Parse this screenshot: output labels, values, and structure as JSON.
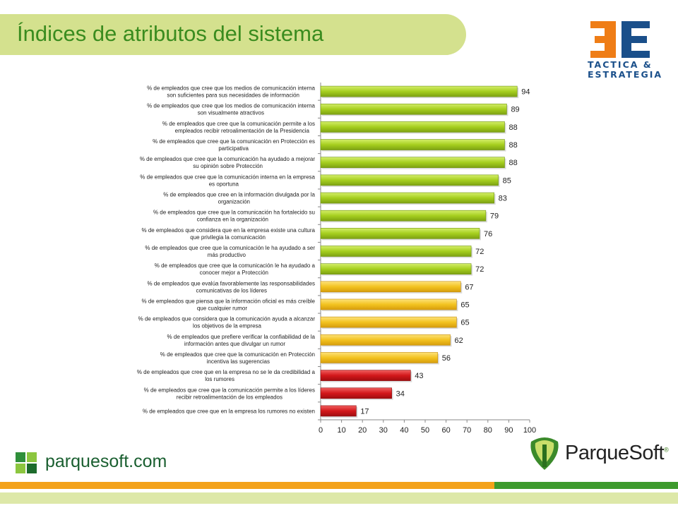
{
  "header": {
    "title": "Índices de atributos del sistema"
  },
  "logos": {
    "tactica_line1": "TACTICA &",
    "tactica_line2": "ESTRATEGIA",
    "parquesoft_url": "parquesoft.com",
    "parquesoft_brand": "ParqueSoft",
    "registered_mark": "®"
  },
  "colors": {
    "title_band": "#d4e18e",
    "title_text": "#3a8c1f",
    "bar_green": "#a6cf1f",
    "bar_yellow": "#f3c320",
    "bar_red": "#d3181b",
    "footer_orange": "#f3a21a",
    "footer_green": "#3d9a2d",
    "logo_orange": "#ef7d16",
    "logo_blue": "#1a4f8a"
  },
  "chart_data": {
    "type": "bar",
    "orientation": "horizontal",
    "title": "",
    "xlabel": "",
    "ylabel": "",
    "xlim": [
      0,
      100
    ],
    "xticks": [
      0,
      10,
      20,
      30,
      40,
      50,
      60,
      70,
      80,
      90,
      100
    ],
    "grid": false,
    "legend": "none",
    "data_labels": true,
    "categories": [
      [
        "% de empleados que cree que los medios de comunicación interna",
        "son suficientes para sus necesidades de información"
      ],
      [
        "% de empleados que cree que los medios de comunicación interna",
        "son visualmente atractivos"
      ],
      [
        "% de empleados que cree que la comunicación permite a los",
        "empleados recibir retroalimentación de la Presidencia"
      ],
      [
        "% de empleados que cree que la comunicación en Protección es",
        "participativa"
      ],
      [
        "% de empleados que cree que la comunicación ha ayudado a mejorar",
        "su opinión sobre Protección"
      ],
      [
        "% de empleados que cree que la comunicación interna en la empresa",
        "es oportuna"
      ],
      [
        "% de empleados que cree en la información divulgada por la",
        "organización"
      ],
      [
        "% de empleados que cree que la comunicación ha fortalecido su",
        "confianza en la organización"
      ],
      [
        "% de empleados que considera que en la empresa existe una cultura",
        "que privilegia la comunicación"
      ],
      [
        "% de empleados que cree que la comunicación le ha ayudado a ser",
        "más productivo"
      ],
      [
        "% de empleados que cree que la comunicación le ha ayudado a",
        "conocer mejor a Protección"
      ],
      [
        "% de empleados que evalúa favorablemente las responsabilidades",
        "comunicativas de los líderes"
      ],
      [
        "% de empleados que piensa que la información oficial es más creíble",
        "que cualquier rumor"
      ],
      [
        "% de empleados que considera que la comunicación ayuda a alcanzar",
        "los objetivos de la empresa"
      ],
      [
        "% de empleados que prefiere verificar la confiabilidad de la",
        "información antes que divulgar un rumor"
      ],
      [
        "% de empleados que cree que la comunicación en Protección",
        "incentiva las sugerencias"
      ],
      [
        "% de empleados que cree que en la empresa no se le da credibilidad a",
        "los rumores"
      ],
      [
        "% de empleados que cree que la comunicación permite a los líderes",
        "recibir retroalimentación de los empleados"
      ],
      [
        "% de empleados que cree que en la empresa los rumores no existen"
      ]
    ],
    "values": [
      94,
      89,
      88,
      88,
      88,
      85,
      83,
      79,
      76,
      72,
      72,
      67,
      65,
      65,
      62,
      56,
      43,
      34,
      17
    ],
    "bar_colors": [
      "green",
      "green",
      "green",
      "green",
      "green",
      "green",
      "green",
      "green",
      "green",
      "green",
      "green",
      "yellow",
      "yellow",
      "yellow",
      "yellow",
      "yellow",
      "red",
      "red",
      "red"
    ]
  }
}
